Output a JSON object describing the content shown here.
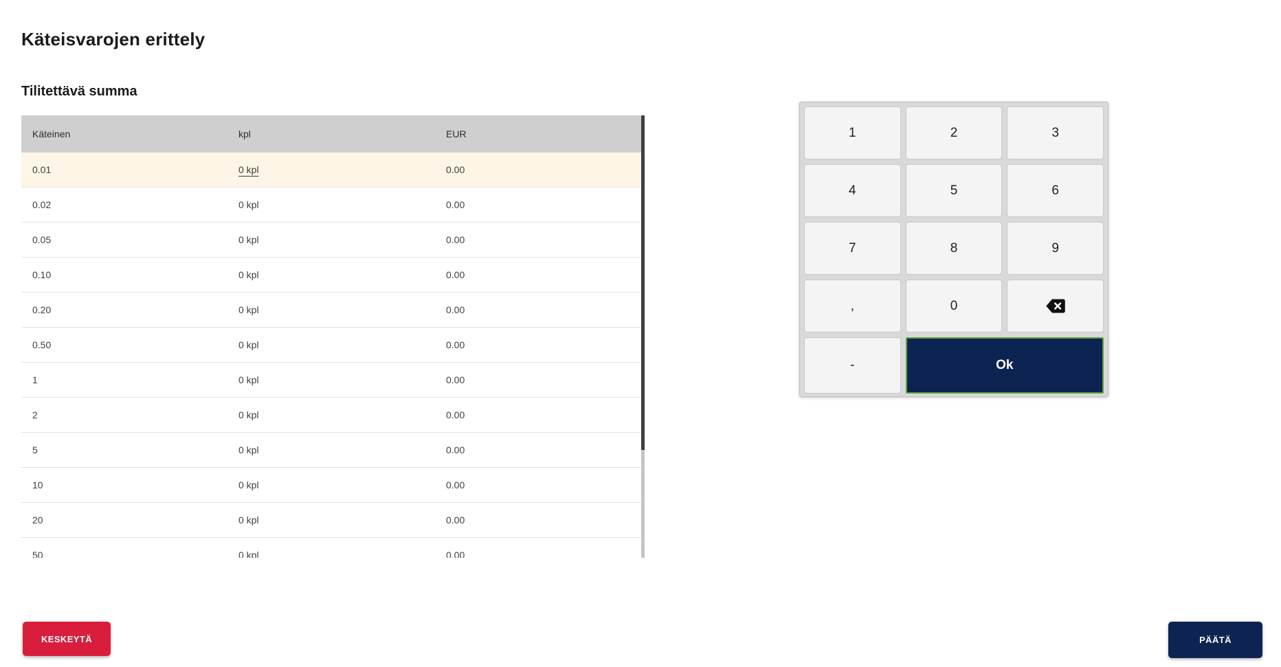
{
  "page": {
    "title": "Käteisvarojen erittely",
    "section_title": "Tilitettävä summa"
  },
  "table": {
    "columns": [
      "Käteinen",
      "kpl",
      "EUR"
    ],
    "rows": [
      {
        "denomination": "0.01",
        "count": "0 kpl",
        "eur": "0.00",
        "selected": true
      },
      {
        "denomination": "0.02",
        "count": "0 kpl",
        "eur": "0.00",
        "selected": false
      },
      {
        "denomination": "0.05",
        "count": "0 kpl",
        "eur": "0.00",
        "selected": false
      },
      {
        "denomination": "0.10",
        "count": "0 kpl",
        "eur": "0.00",
        "selected": false
      },
      {
        "denomination": "0.20",
        "count": "0 kpl",
        "eur": "0.00",
        "selected": false
      },
      {
        "denomination": "0.50",
        "count": "0 kpl",
        "eur": "0.00",
        "selected": false
      },
      {
        "denomination": "1",
        "count": "0 kpl",
        "eur": "0.00",
        "selected": false
      },
      {
        "denomination": "2",
        "count": "0 kpl",
        "eur": "0.00",
        "selected": false
      },
      {
        "denomination": "5",
        "count": "0 kpl",
        "eur": "0.00",
        "selected": false
      },
      {
        "denomination": "10",
        "count": "0 kpl",
        "eur": "0.00",
        "selected": false
      },
      {
        "denomination": "20",
        "count": "0 kpl",
        "eur": "0.00",
        "selected": false
      },
      {
        "denomination": "50",
        "count": "0 kpl",
        "eur": "0.00",
        "selected": false
      }
    ]
  },
  "keypad": {
    "digit_keys": [
      "1",
      "2",
      "3",
      "4",
      "5",
      "6",
      "7",
      "8",
      "9",
      ",",
      "0",
      "backspace"
    ],
    "minus_label": "-",
    "ok_label": "Ok"
  },
  "actions": {
    "cancel_label": "KESKEYTÄ",
    "finish_label": "PÄÄTÄ"
  },
  "colors": {
    "cancel_red": "#d91e3d",
    "navy_blue": "#0d2453",
    "ok_border_green": "#61a231",
    "selected_row_bg": "#fdf5e5",
    "table_header_gray": "#cfcfcf",
    "keypad_panel_gray": "#d9d9d9"
  }
}
